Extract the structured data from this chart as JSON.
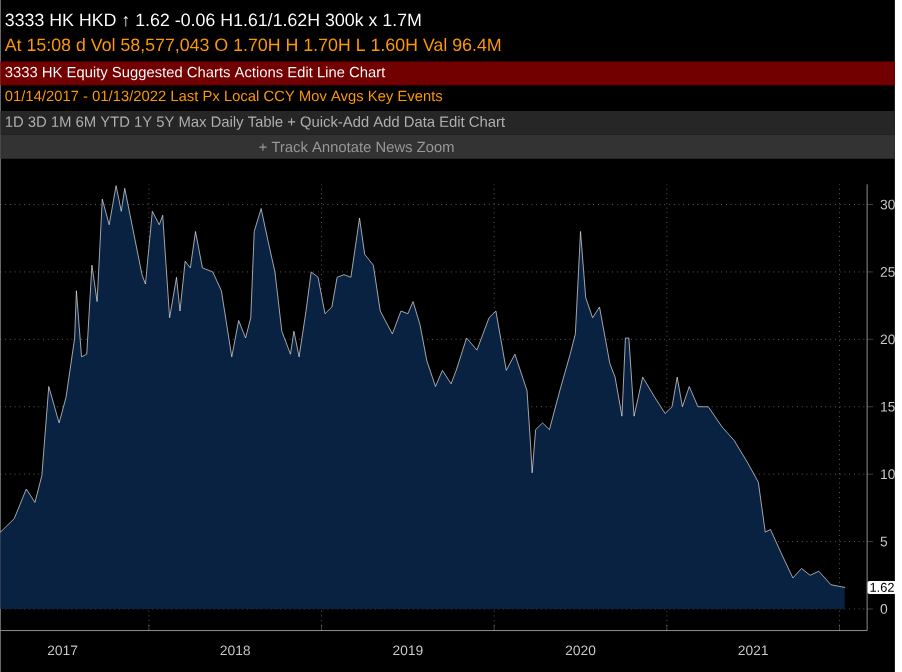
{
  "chart_data": {
    "type": "area",
    "x": [
      2017.14,
      2017.22,
      2017.29,
      2017.34,
      2017.38,
      2017.42,
      2017.48,
      2017.52,
      2017.57,
      2017.58,
      2017.61,
      2017.64,
      2017.67,
      2017.7,
      2017.73,
      2017.77,
      2017.81,
      2017.84,
      2017.86,
      2017.91,
      2017.96,
      2017.98,
      2018.02,
      2018.06,
      2018.08,
      2018.12,
      2018.16,
      2018.18,
      2018.21,
      2018.24,
      2018.27,
      2018.31,
      2018.37,
      2018.42,
      2018.48,
      2018.52,
      2018.56,
      2018.59,
      2018.61,
      2018.65,
      2018.69,
      2018.73,
      2018.77,
      2018.82,
      2018.84,
      2018.87,
      2018.91,
      2018.94,
      2018.98,
      2019.02,
      2019.06,
      2019.09,
      2019.13,
      2019.17,
      2019.22,
      2019.25,
      2019.3,
      2019.34,
      2019.41,
      2019.46,
      2019.5,
      2019.53,
      2019.57,
      2019.61,
      2019.66,
      2019.7,
      2019.75,
      2019.78,
      2019.84,
      2019.9,
      2019.97,
      2020.01,
      2020.07,
      2020.12,
      2020.19,
      2020.21,
      2020.22,
      2020.24,
      2020.28,
      2020.32,
      2020.38,
      2020.44,
      2020.47,
      2020.5,
      2020.53,
      2020.57,
      2020.61,
      2020.67,
      2020.7,
      2020.74,
      2020.76,
      2020.78,
      2020.81,
      2020.86,
      2020.93,
      2020.99,
      2021.03,
      2021.06,
      2021.09,
      2021.13,
      2021.18,
      2021.24,
      2021.32,
      2021.39,
      2021.47,
      2021.53,
      2021.57,
      2021.6,
      2021.66,
      2021.73,
      2021.78,
      2021.83,
      2021.88,
      2021.95,
      2022.03
    ],
    "values": [
      5.7,
      6.7,
      8.9,
      7.9,
      9.9,
      16.5,
      13.8,
      15.7,
      20.1,
      23.6,
      18.7,
      18.9,
      25.5,
      22.8,
      30.4,
      28.5,
      31.4,
      29.5,
      31.2,
      28.0,
      24.8,
      24.1,
      29.5,
      28.5,
      29.2,
      21.6,
      24.6,
      22.1,
      25.8,
      25.3,
      28.0,
      25.3,
      25.0,
      23.6,
      18.7,
      21.4,
      20.1,
      21.6,
      28.0,
      29.7,
      27.3,
      25.0,
      20.6,
      18.9,
      20.6,
      18.7,
      22.1,
      25.0,
      24.6,
      21.9,
      22.4,
      24.6,
      24.8,
      24.6,
      29.0,
      26.3,
      25.5,
      22.1,
      20.4,
      22.1,
      21.9,
      22.8,
      21.1,
      18.4,
      16.5,
      17.7,
      16.7,
      17.7,
      20.1,
      19.2,
      21.6,
      22.1,
      17.7,
      18.9,
      16.2,
      12.3,
      10.1,
      13.3,
      13.8,
      13.3,
      16.2,
      18.9,
      20.4,
      28.0,
      23.1,
      21.6,
      22.4,
      18.2,
      17.2,
      14.3,
      20.1,
      20.1,
      14.3,
      17.2,
      15.7,
      14.5,
      15.0,
      17.2,
      15.0,
      16.5,
      15.0,
      15.0,
      13.5,
      12.5,
      10.8,
      9.4,
      5.7,
      5.9,
      4.2,
      2.3,
      3.0,
      2.5,
      2.8,
      1.8,
      1.6
    ],
    "color": "#0a2242",
    "xlim": [
      2017.14,
      2022.16
    ],
    "ylim": [
      -1.6,
      31.5
    ],
    "xticks": [
      {
        "value": 2017.5,
        "label": "2017"
      },
      {
        "value": 2018,
        "label": null
      },
      {
        "value": 2018.5,
        "label": "2018"
      },
      {
        "value": 2019,
        "label": null
      },
      {
        "value": 2019.5,
        "label": "2019"
      },
      {
        "value": 2020,
        "label": null
      },
      {
        "value": 2020.5,
        "label": "2020"
      },
      {
        "value": 2021,
        "label": null
      },
      {
        "value": 2021.5,
        "label": "2021"
      },
      {
        "value": 2022,
        "label": null
      }
    ],
    "yticks": [
      0,
      5,
      10,
      15,
      20,
      25,
      30
    ],
    "grid": true,
    "annotations": [
      "3333 HK HKD ↑ 1.62   -0.06        H1.61/1.62H    300k x 1.7M",
      "At 15:08 d  Vol 58,577,043   O 1.70H   H 1.70H   L 1.60H   Val 96.4M",
      "3333 HK Equity   Suggested Charts   Actions   Edit        Line Chart",
      "01/14/2017 - 01/13/2022   Last Px   Local CCY   Mov Avgs   Key Events",
      "1D 3D 1M 6M YTD 1Y 5Y Max Daily   Table   + Quick-Add   Add Data   Edit Chart",
      "+ Track   Annotate   News   Zoom",
      "1.62"
    ]
  }
}
